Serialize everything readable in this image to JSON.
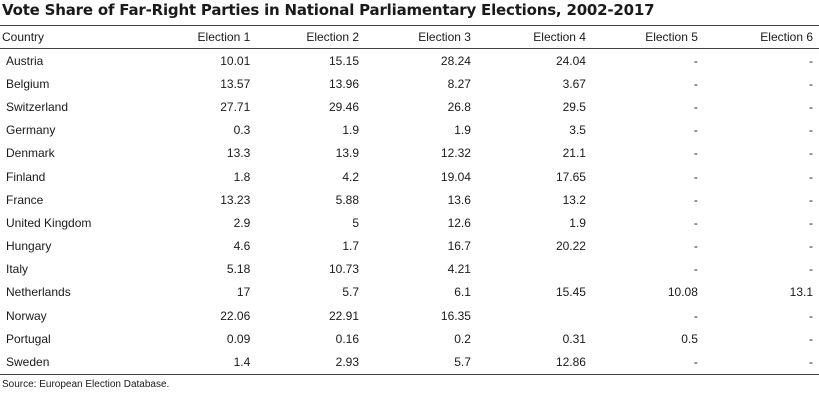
{
  "chart_data": {
    "type": "table",
    "title": "Vote Share of Far-Right Parties in National Parliamentary Elections, 2002-2017",
    "columns": [
      "Country",
      "Election 1",
      "Election 2",
      "Election 3",
      "Election 4",
      "Election 5",
      "Election 6"
    ],
    "rows": [
      [
        "Austria",
        "10.01",
        "15.15",
        "28.24",
        "24.04",
        "-",
        "-"
      ],
      [
        "Belgium",
        "13.57",
        "13.96",
        "8.27",
        "3.67",
        "-",
        "-"
      ],
      [
        "Switzerland",
        "27.71",
        "29.46",
        "26.8",
        "29.5",
        "-",
        "-"
      ],
      [
        "Germany",
        "0.3",
        "1.9",
        "1.9",
        "3.5",
        "-",
        "-"
      ],
      [
        "Denmark",
        "13.3",
        "13.9",
        "12.32",
        "21.1",
        "-",
        "-"
      ],
      [
        "Finland",
        "1.8",
        "4.2",
        "19.04",
        "17.65",
        "-",
        "-"
      ],
      [
        "France",
        "13.23",
        "5.88",
        "13.6",
        "13.2",
        "-",
        "-"
      ],
      [
        "United Kingdom",
        "2.9",
        "5",
        "12.6",
        "1.9",
        "-",
        "-"
      ],
      [
        "Hungary",
        "4.6",
        "1.7",
        "16.7",
        "20.22",
        "-",
        "-"
      ],
      [
        "Italy",
        "5.18",
        "10.73",
        "4.21",
        "",
        "-",
        "-"
      ],
      [
        "Netherlands",
        "17",
        "5.7",
        "6.1",
        "15.45",
        "10.08",
        "13.1"
      ],
      [
        "Norway",
        "22.06",
        "22.91",
        "16.35",
        "",
        "-",
        "-"
      ],
      [
        "Portugal",
        "0.09",
        "0.16",
        "0.2",
        "0.31",
        "0.5",
        "-"
      ],
      [
        "Sweden",
        "1.4",
        "2.93",
        "5.7",
        "12.86",
        "-",
        "-"
      ]
    ],
    "source": "Source: European Election Database."
  }
}
